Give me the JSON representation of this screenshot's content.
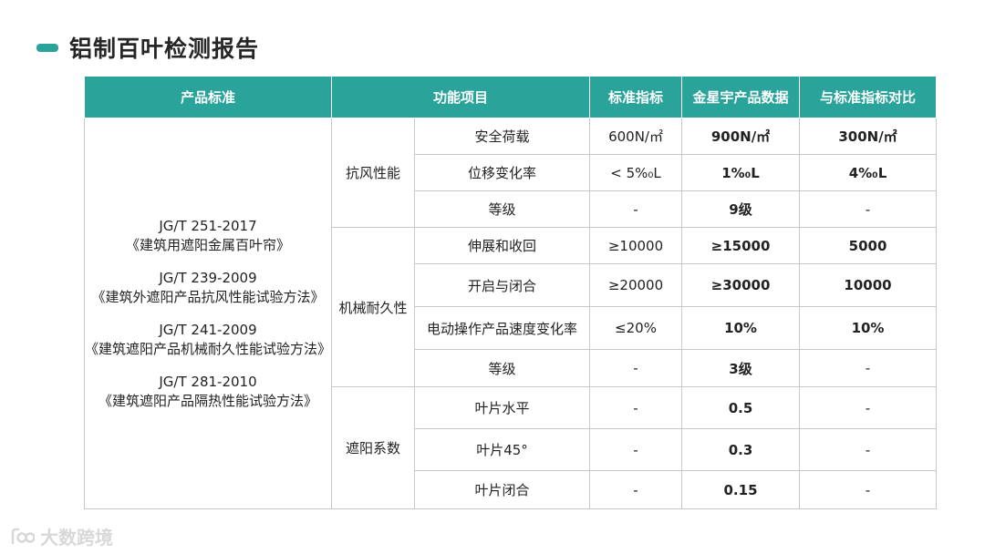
{
  "page_title": "铝制百叶检测报告",
  "watermark_text": "大数跨境",
  "colors": {
    "accent": "#2aa39a",
    "header_bg": "#2aa39a",
    "border": "#c8c8c8"
  },
  "table": {
    "headers": {
      "standard": "产品标准",
      "function_item": "功能项目",
      "indicator": "标准指标",
      "product_data": "金星宇产品数据",
      "comparison": "与标准指标对比"
    },
    "standards": [
      {
        "code": "JG/T 251-2017",
        "name": "《建筑用遮阳金属百叶帘》"
      },
      {
        "code": "JG/T 239-2009",
        "name": "《建筑外遮阳产品抗风性能试验方法》"
      },
      {
        "code": "JG/T 241-2009",
        "name": "《建筑遮阳产品机械耐久性能试验方法》"
      },
      {
        "code": "JG/T 281-2010",
        "name": "《建筑遮阳产品隔热性能试验方法》"
      }
    ],
    "groups": [
      {
        "category": "抗风性能",
        "rows": [
          {
            "item": "安全荷载",
            "indicator": "600N/㎡",
            "product": "900N/㎡",
            "comparison": "300N/㎡"
          },
          {
            "item": "位移变化率",
            "indicator": "< 5%₀L",
            "product": "1%₀L",
            "comparison": "4%₀L"
          },
          {
            "item": "等级",
            "indicator": "-",
            "product": "9级",
            "comparison": "-"
          }
        ]
      },
      {
        "category": "机械耐久性",
        "rows": [
          {
            "item": "伸展和收回",
            "indicator": "≥10000",
            "product": "≥15000",
            "comparison": "5000"
          },
          {
            "item": "开启与闭合",
            "indicator": "≥20000",
            "product": "≥30000",
            "comparison": "10000"
          },
          {
            "item": "电动操作产品速度变化率",
            "indicator": "≤20%",
            "product": "10%",
            "comparison": "10%"
          },
          {
            "item": "等级",
            "indicator": "-",
            "product": "3级",
            "comparison": "-"
          }
        ]
      },
      {
        "category": "遮阳系数",
        "rows": [
          {
            "item": "叶片水平",
            "indicator": "-",
            "product": "0.5",
            "comparison": "-"
          },
          {
            "item": "叶片45°",
            "indicator": "-",
            "product": "0.3",
            "comparison": "-"
          },
          {
            "item": "叶片闭合",
            "indicator": "-",
            "product": "0.15",
            "comparison": "-"
          }
        ]
      }
    ]
  }
}
